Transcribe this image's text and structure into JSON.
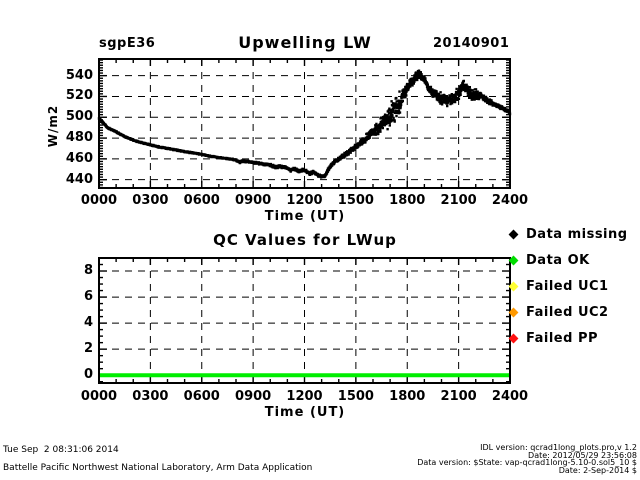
{
  "header": {
    "site": "sgpE36",
    "date": "20140901"
  },
  "chart_data": [
    {
      "type": "scatter",
      "title": "Upwelling LW",
      "xlabel": "Time (UT)",
      "ylabel": "W/m2",
      "xlim": [
        0,
        24
      ],
      "ylim": [
        432,
        556
      ],
      "xtick_values": [
        0,
        3,
        6,
        9,
        12,
        15,
        18,
        21,
        24
      ],
      "xtick_labels": [
        "0000",
        "0300",
        "0600",
        "0900",
        "1200",
        "1500",
        "1800",
        "2100",
        "2400"
      ],
      "ytick_values": [
        440,
        460,
        480,
        500,
        520,
        540
      ],
      "grid": "dashed",
      "legend_position": "none",
      "marker": "dot",
      "marker_color": "#000000",
      "base_curve": [
        [
          0,
          499
        ],
        [
          0.5,
          490
        ],
        [
          1,
          486
        ],
        [
          1.5,
          481.5
        ],
        [
          2,
          478
        ],
        [
          2.5,
          475.5
        ],
        [
          3,
          473.5
        ],
        [
          3.5,
          471.5
        ],
        [
          4,
          470
        ],
        [
          4.5,
          468.5
        ],
        [
          5,
          467
        ],
        [
          5.5,
          465.8
        ],
        [
          6,
          464.3
        ],
        [
          6.5,
          462.5
        ],
        [
          7,
          461.3
        ],
        [
          7.5,
          460.2
        ],
        [
          8,
          459
        ],
        [
          8.2,
          456.8
        ],
        [
          8.4,
          458
        ],
        [
          9,
          456.5
        ],
        [
          9.5,
          455.2
        ],
        [
          10,
          454
        ],
        [
          10.3,
          452
        ],
        [
          10.6,
          453
        ],
        [
          11,
          450.8
        ],
        [
          11.2,
          448.8
        ],
        [
          11.4,
          450.8
        ],
        [
          11.7,
          447.7
        ],
        [
          11.9,
          449.8
        ],
        [
          12.1,
          448.3
        ],
        [
          12.3,
          445.5
        ],
        [
          12.5,
          447.3
        ],
        [
          12.8,
          444.3
        ],
        [
          13,
          443
        ],
        [
          13.2,
          443.8
        ],
        [
          13.5,
          453
        ],
        [
          13.8,
          458
        ],
        [
          14.1,
          461
        ],
        [
          14.5,
          465.5
        ],
        [
          15,
          472
        ],
        [
          15.5,
          478.5
        ],
        [
          16,
          486
        ],
        [
          16.4,
          492
        ],
        [
          16.9,
          501
        ],
        [
          17.4,
          510
        ],
        [
          17.9,
          524
        ],
        [
          18.2,
          533
        ],
        [
          18.5,
          539
        ],
        [
          18.7,
          542
        ],
        [
          19,
          536.5
        ],
        [
          19.2,
          530
        ],
        [
          19.45,
          523.5
        ],
        [
          19.7,
          520.5
        ],
        [
          20,
          517.5
        ],
        [
          20.3,
          515.5
        ],
        [
          20.7,
          519
        ],
        [
          21,
          523
        ],
        [
          21.25,
          530
        ],
        [
          21.5,
          526.5
        ],
        [
          21.8,
          521
        ],
        [
          22.1,
          522.5
        ],
        [
          22.4,
          519.5
        ],
        [
          22.7,
          516
        ],
        [
          23,
          513
        ],
        [
          23.4,
          510
        ],
        [
          23.7,
          507.5
        ],
        [
          24,
          504
        ]
      ],
      "scatter_spread": [
        [
          0,
          0.7
        ],
        [
          8,
          1.1
        ],
        [
          10,
          1.4
        ],
        [
          13.3,
          2
        ],
        [
          14.2,
          2.6
        ],
        [
          15.2,
          4
        ],
        [
          16.1,
          7
        ],
        [
          16.8,
          13
        ],
        [
          17.6,
          8
        ],
        [
          18.0,
          5
        ],
        [
          18.8,
          3.5
        ],
        [
          19.3,
          5
        ],
        [
          19.9,
          6.5
        ],
        [
          22.2,
          3
        ],
        [
          23,
          1.8
        ],
        [
          24,
          1.8
        ]
      ]
    },
    {
      "type": "line",
      "title": "QC Values for LWup",
      "xlabel": "Time (UT)",
      "ylabel": "",
      "xlim": [
        0,
        24
      ],
      "ylim": [
        -0.6,
        9.0
      ],
      "xtick_values": [
        0,
        3,
        6,
        9,
        12,
        15,
        18,
        21,
        24
      ],
      "xtick_labels": [
        "0000",
        "0300",
        "0600",
        "0900",
        "1200",
        "1500",
        "1800",
        "2100",
        "2400"
      ],
      "ytick_values": [
        0,
        2,
        4,
        6,
        8
      ],
      "grid": "dashed",
      "series": [
        {
          "name": "qc_flag",
          "color": "#00ee00",
          "linewidth": 4,
          "x": [
            0,
            24
          ],
          "y": [
            0,
            0
          ]
        }
      ]
    }
  ],
  "legend": {
    "items": [
      {
        "label": "Data missing",
        "color": "#000000"
      },
      {
        "label": "Data OK",
        "color": "#00dd00"
      },
      {
        "label": "Failed UC1",
        "color": "#ffff33"
      },
      {
        "label": "Failed UC2",
        "color": "#ff9900"
      },
      {
        "label": "Failed PP",
        "color": "#ff1111"
      }
    ]
  },
  "footer": {
    "timestamp": "Tue Sep  2 08:31:06 2014",
    "organization": "Battelle Pacific Northwest National Laboratory, Arm Data Application",
    "idl_version": "IDL version: qcrad1long_plots.pro,v 1.2",
    "idl_date": "Date: 2012/05/29 23:56:08",
    "data_version": "Data version: $State: vap-qcrad1long-5.10-0.sol5_10 $",
    "data_date": "Date: 2-Sep-2014 $"
  }
}
